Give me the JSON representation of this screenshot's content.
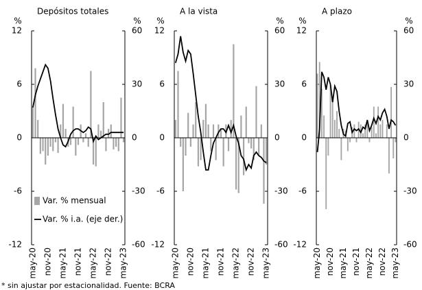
{
  "chart_data": [
    {
      "type": "combo",
      "title": "Depósitos totales",
      "ylabel": "%",
      "y2label": "%",
      "categories": [
        "may-20",
        null,
        null,
        null,
        null,
        null,
        "nov-20",
        null,
        null,
        null,
        null,
        null,
        "may-21",
        null,
        null,
        null,
        null,
        null,
        "nov-21",
        null,
        null,
        null,
        null,
        null,
        "may-22",
        null,
        null,
        null,
        null,
        null,
        "nov-22",
        null,
        null,
        null,
        null,
        null,
        "may-23"
      ],
      "ylim": [
        -12,
        12
      ],
      "yticks": [
        -12,
        -6,
        0,
        6,
        12
      ],
      "y2lim": [
        -60,
        60
      ],
      "y2ticks": [
        -60,
        -30,
        0,
        30,
        60
      ],
      "legend": "lower left",
      "series": [
        {
          "name": "Var. % mensual",
          "type": "bar",
          "color": "#a6a6a6",
          "values": [
            3.5,
            7.8,
            2,
            -1.8,
            -1.5,
            -3,
            -2,
            -1,
            -1.5,
            -0.5,
            -1.7,
            1.5,
            3.8,
            1,
            -1,
            -0.8,
            3.5,
            -2,
            -0.8,
            1.5,
            -0.5,
            0.5,
            -1,
            7.5,
            -3,
            -3.2,
            1.5,
            0.8,
            4,
            -1.5,
            1,
            1.5,
            -1.3,
            -1,
            -1.5,
            4.5,
            -0.5
          ]
        },
        {
          "name": "Var. % i.a. (eje der.)",
          "type": "line",
          "axis": "y2",
          "color": "#000000",
          "values": [
            17,
            24,
            29,
            33,
            37,
            41,
            39,
            32,
            22,
            13,
            5,
            0,
            -4,
            -5,
            -2,
            2,
            4,
            5,
            5,
            4,
            3,
            4,
            6,
            5,
            -2,
            1,
            -1,
            0,
            1,
            2,
            2,
            3,
            3,
            3,
            3,
            3,
            3
          ]
        }
      ]
    },
    {
      "type": "combo",
      "title": "A la vista",
      "ylabel": "%",
      "y2label": "%",
      "categories": [
        "may-20",
        null,
        null,
        null,
        null,
        null,
        "nov-20",
        null,
        null,
        null,
        null,
        null,
        "may-21",
        null,
        null,
        null,
        null,
        null,
        "nov-21",
        null,
        null,
        null,
        null,
        null,
        "may-22",
        null,
        null,
        null,
        null,
        null,
        "nov-22",
        null,
        null,
        null,
        null,
        null,
        "may-23"
      ],
      "ylim": [
        -12,
        12
      ],
      "yticks": [
        -12,
        -6,
        0,
        6,
        12
      ],
      "y2lim": [
        -60,
        60
      ],
      "y2ticks": [
        -60,
        -30,
        0,
        30,
        60
      ],
      "series": [
        {
          "type": "bar",
          "color": "#a6a6a6",
          "values": [
            2,
            7.5,
            -1,
            -6,
            -2,
            2.8,
            -1,
            1.5,
            4,
            -3.2,
            -2.5,
            2,
            3.8,
            1.5,
            -1.5,
            1.5,
            -2.5,
            1.5,
            1,
            -3.2,
            1.5,
            -1.5,
            2,
            10.5,
            -5.8,
            -6.2,
            2.5,
            -4.2,
            3.5,
            -0.6,
            -1.2,
            -2.5,
            5.8,
            -2,
            1.5,
            -7.4,
            -3
          ]
        },
        {
          "type": "line",
          "axis": "y2",
          "color": "#000000",
          "values": [
            42,
            47,
            57,
            48,
            43,
            49,
            47,
            36,
            24,
            12,
            3,
            -8,
            -18,
            -18,
            -10,
            -3,
            0,
            3,
            5,
            5,
            3,
            7,
            3,
            7,
            1,
            -3,
            -10,
            -12,
            -18,
            -15,
            -17,
            -10,
            -8,
            -10,
            -11,
            -13,
            -14
          ]
        }
      ]
    },
    {
      "type": "combo",
      "title": "A plazo",
      "ylabel": "%",
      "y2label": "%",
      "categories": [
        "may-20",
        null,
        null,
        null,
        null,
        null,
        "nov-20",
        null,
        null,
        null,
        null,
        null,
        "may-21",
        null,
        null,
        null,
        null,
        null,
        "nov-21",
        null,
        null,
        null,
        null,
        null,
        "may-22",
        null,
        null,
        null,
        null,
        null,
        "nov-22",
        null,
        null,
        null,
        null,
        null,
        "may-23"
      ],
      "ylim": [
        -12,
        12
      ],
      "yticks": [
        -12,
        -6,
        0,
        6,
        12
      ],
      "y2lim": [
        -60,
        60
      ],
      "y2ticks": [
        -60,
        -30,
        0,
        30,
        60
      ],
      "series": [
        {
          "type": "bar",
          "color": "#a6a6a6",
          "values": [
            7.2,
            8.5,
            5.5,
            2.5,
            -8,
            -2,
            6,
            4.5,
            2,
            3,
            1,
            -2.5,
            1,
            0.8,
            -1.5,
            -0.5,
            1.2,
            1.5,
            -0.5,
            1.8,
            1.5,
            0.5,
            1.5,
            2,
            -0.5,
            1.2,
            3.5,
            0.5,
            3.5,
            1.5,
            2,
            0,
            1.5,
            -4,
            5.7,
            -2.3,
            -0.5
          ]
        },
        {
          "type": "line",
          "axis": "y2",
          "color": "#000000",
          "values": [
            -8,
            5,
            37,
            34,
            27,
            34,
            30,
            20,
            29,
            26,
            15,
            7,
            2,
            1,
            8,
            9,
            3,
            5,
            4,
            5,
            3,
            6,
            5,
            10,
            4,
            7,
            11,
            8,
            12,
            10,
            14,
            16,
            12,
            5,
            10,
            9,
            7
          ]
        }
      ]
    }
  ],
  "footnote": "* sin ajustar por estacionalidad. Fuente: BCRA"
}
